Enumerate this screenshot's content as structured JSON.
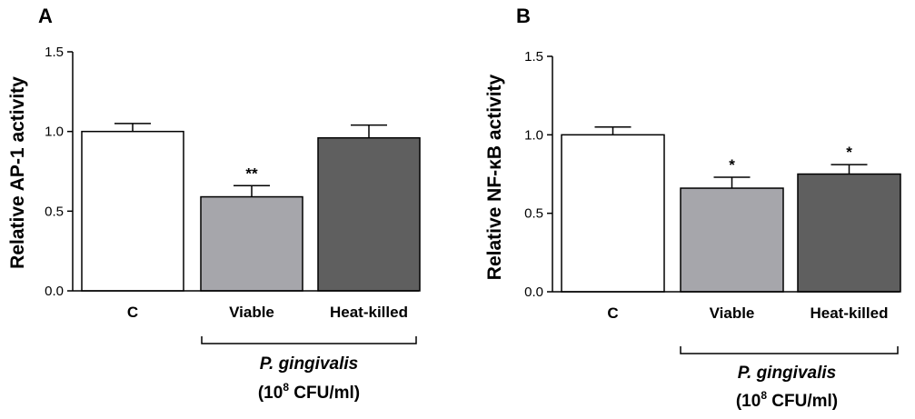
{
  "chart_data": [
    {
      "type": "bar",
      "panel_label": "A",
      "ylabel": "Relative AP-1 activity",
      "ylim": [
        0,
        1.5
      ],
      "yticks": [
        "0.0",
        "0.5",
        "1.0",
        "1.5"
      ],
      "categories": [
        "C",
        "Viable",
        "Heat-killed"
      ],
      "values": [
        1.0,
        0.59,
        0.96
      ],
      "errors": [
        0.05,
        0.07,
        0.08
      ],
      "significance": [
        "",
        "**",
        ""
      ],
      "bar_colors": [
        "#ffffff",
        "#a6a6ab",
        "#5f5f5f"
      ],
      "group_label": "P. gingivalis",
      "group_sublabel_pre": "(10",
      "group_sublabel_sup": "8",
      "group_sublabel_post": " CFU/ml)"
    },
    {
      "type": "bar",
      "panel_label": "B",
      "ylabel": "Relative NF-κB activity",
      "ylim": [
        0,
        1.5
      ],
      "yticks": [
        "0.0",
        "0.5",
        "1.0",
        "1.5"
      ],
      "categories": [
        "C",
        "Viable",
        "Heat-killed"
      ],
      "values": [
        1.0,
        0.66,
        0.75
      ],
      "errors": [
        0.05,
        0.07,
        0.06
      ],
      "significance": [
        "",
        "*",
        "*"
      ],
      "bar_colors": [
        "#ffffff",
        "#a6a6ab",
        "#5f5f5f"
      ],
      "group_label": "P. gingivalis",
      "group_sublabel_pre": "(10",
      "group_sublabel_sup": "8",
      "group_sublabel_post": " CFU/ml)"
    }
  ]
}
